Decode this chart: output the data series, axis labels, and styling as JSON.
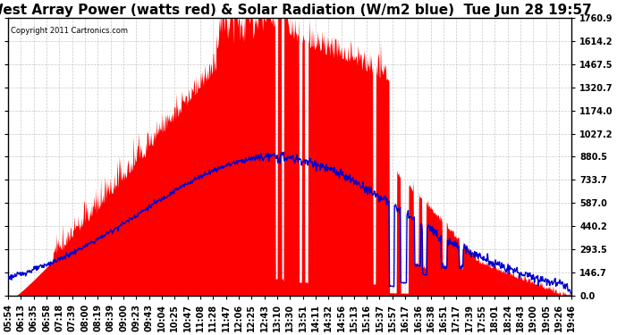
{
  "title": "West Array Power (watts red) & Solar Radiation (W/m2 blue)  Tue Jun 28 19:57",
  "copyright": "Copyright 2011 Cartronics.com",
  "background_color": "#ffffff",
  "plot_bg_color": "#ffffff",
  "grid_color": "#c8c8c8",
  "ymax": 1760.9,
  "ymin": 0.0,
  "yticks": [
    0.0,
    146.7,
    293.5,
    440.2,
    587.0,
    733.7,
    880.5,
    1027.2,
    1174.0,
    1320.7,
    1467.5,
    1614.2,
    1760.9
  ],
  "x_labels": [
    "05:54",
    "06:13",
    "06:35",
    "06:58",
    "07:18",
    "07:39",
    "08:00",
    "08:19",
    "08:39",
    "09:00",
    "09:23",
    "09:43",
    "10:04",
    "10:25",
    "10:47",
    "11:08",
    "11:28",
    "11:47",
    "12:06",
    "12:25",
    "12:43",
    "13:10",
    "13:30",
    "13:51",
    "14:11",
    "14:32",
    "14:56",
    "15:13",
    "15:16",
    "15:37",
    "15:57",
    "16:17",
    "16:36",
    "16:38",
    "16:51",
    "17:17",
    "17:39",
    "17:55",
    "18:01",
    "18:24",
    "18:43",
    "19:00",
    "19:05",
    "19:26",
    "19:46"
  ],
  "red_color": "#ff0000",
  "blue_color": "#0000cc",
  "title_fontsize": 11,
  "tick_fontsize": 7,
  "ylabel_fontsize": 7
}
